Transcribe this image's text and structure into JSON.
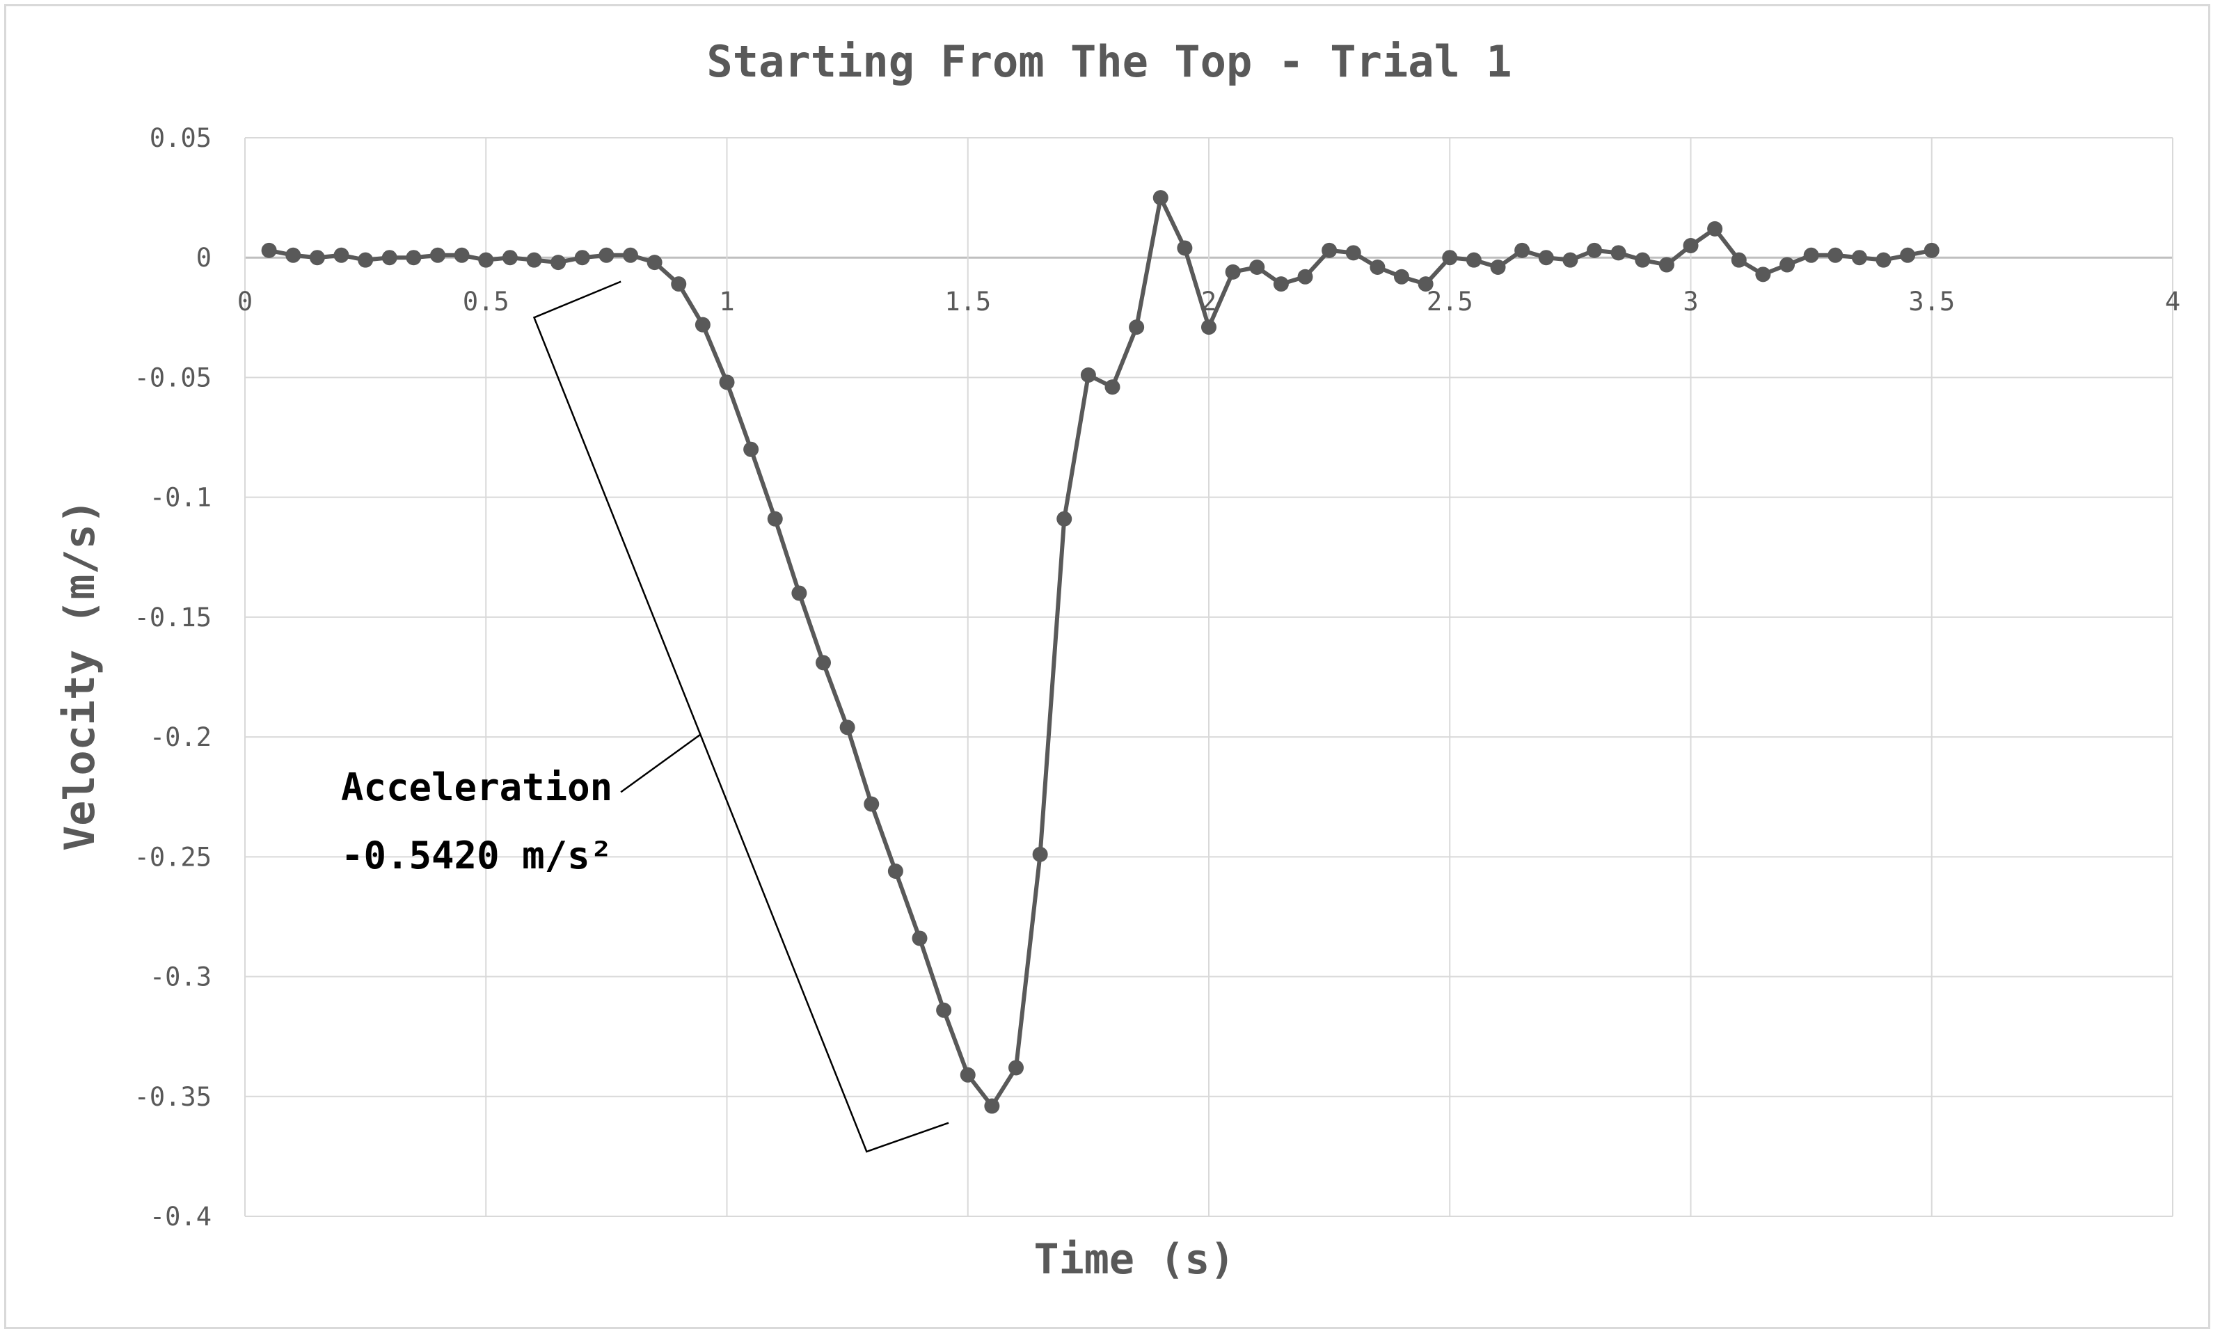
{
  "chart_data": {
    "type": "scatter",
    "title": "Starting From The Top - Trial 1",
    "xlabel": "Time (s)",
    "ylabel": "Velocity (m/s)",
    "xlim": [
      0,
      4
    ],
    "ylim": [
      -0.4,
      0.05
    ],
    "xticks": [
      0,
      0.5,
      1,
      1.5,
      2,
      2.5,
      3,
      3.5,
      4
    ],
    "xtick_labels": [
      "0",
      "0.5",
      "1",
      "1.5",
      "2",
      "2.5",
      "3",
      "3.5",
      "4"
    ],
    "yticks": [
      0.05,
      0,
      -0.05,
      -0.1,
      -0.15,
      -0.2,
      -0.25,
      -0.3,
      -0.35,
      -0.4
    ],
    "ytick_labels": [
      "0.05",
      "0",
      "-0.05",
      "-0.1",
      "-0.15",
      "-0.2",
      "-0.25",
      "-0.3",
      "-0.35",
      "-0.4"
    ],
    "grid": true,
    "legend": "none",
    "line_color": "#595959",
    "series": [
      {
        "x": [
          0.05,
          0.1,
          0.15,
          0.2,
          0.25,
          0.3,
          0.35,
          0.4,
          0.45,
          0.5,
          0.55,
          0.6,
          0.65,
          0.7,
          0.75,
          0.8,
          0.85,
          0.9,
          0.95,
          1.0,
          1.05,
          1.1,
          1.15,
          1.2,
          1.25,
          1.3,
          1.35,
          1.4,
          1.45,
          1.5,
          1.55,
          1.6,
          1.65,
          1.7,
          1.75,
          1.8,
          1.85,
          1.9,
          1.95,
          2.0,
          2.05,
          2.1,
          2.15,
          2.2,
          2.25,
          2.3,
          2.35,
          2.4,
          2.45,
          2.5,
          2.55,
          2.6,
          2.65,
          2.7,
          2.75,
          2.8,
          2.85,
          2.9,
          2.95,
          3.0,
          3.05,
          3.1,
          3.15,
          3.2,
          3.25,
          3.3,
          3.35,
          3.4,
          3.45,
          3.5
        ],
        "y": [
          0.003,
          0.001,
          0.0,
          0.001,
          -0.001,
          0.0,
          0.0,
          0.001,
          0.001,
          -0.001,
          0.0,
          -0.001,
          -0.002,
          0.0,
          0.001,
          0.001,
          -0.002,
          -0.011,
          -0.028,
          -0.052,
          -0.08,
          -0.109,
          -0.14,
          -0.169,
          -0.196,
          -0.228,
          -0.256,
          -0.284,
          -0.314,
          -0.341,
          -0.354,
          -0.338,
          -0.249,
          -0.109,
          -0.049,
          -0.054,
          -0.029,
          0.025,
          0.004,
          -0.029,
          -0.006,
          -0.004,
          -0.011,
          -0.008,
          0.003,
          0.002,
          -0.004,
          -0.008,
          -0.011,
          0.0,
          -0.001,
          -0.004,
          0.003,
          0.0,
          -0.001,
          0.003,
          0.002,
          -0.001,
          -0.003,
          0.005,
          0.012,
          -0.001,
          -0.007,
          -0.003,
          0.001,
          0.001,
          0.0,
          -0.001,
          0.001,
          0.003
        ]
      }
    ],
    "annotation": {
      "line1": "Acceleration",
      "line2": "-0.5420 m/s²"
    }
  }
}
